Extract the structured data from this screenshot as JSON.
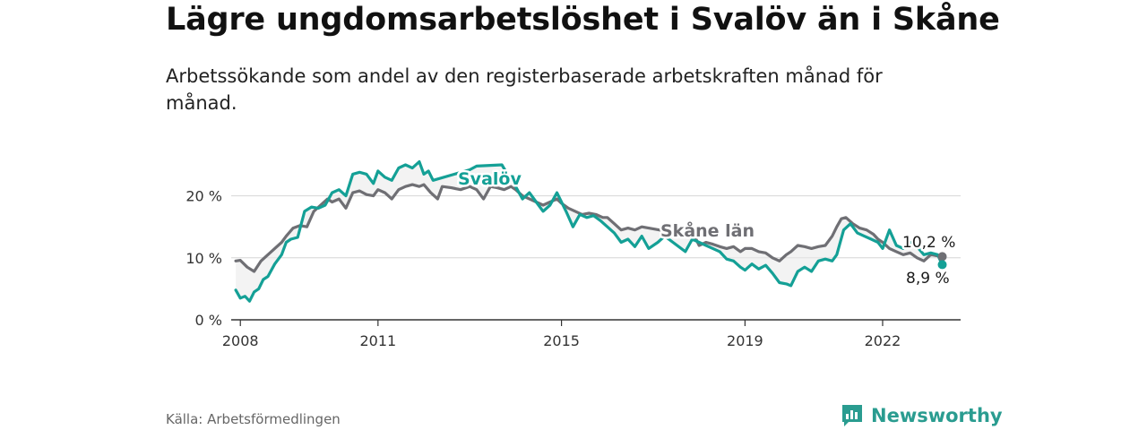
{
  "title": "Lägre ungdomsarbetslöshet i Svalöv än i Skåne",
  "subtitle": "Arbetssökande som andel av den registerbaserade arbetskraften månad för månad.",
  "source": "Källa: Arbetsförmedlingen",
  "brand": {
    "name": "Newsworthy",
    "icon": "newsworthy-logo-icon"
  },
  "colors": {
    "svalov": "#14a096",
    "skane": "#6f6f74",
    "grid": "#d6d6d6",
    "axis": "#333333"
  },
  "chart_data": {
    "type": "line",
    "title": "Lägre ungdomsarbetslöshet i Svalöv än i Skåne",
    "xlabel": "",
    "ylabel": "",
    "x_ticks": [
      {
        "year": 2008,
        "label": "2008"
      },
      {
        "year": 2011,
        "label": "2011"
      },
      {
        "year": 2015,
        "label": "2015"
      },
      {
        "year": 2019,
        "label": "2019"
      },
      {
        "year": 2022,
        "label": "2022"
      }
    ],
    "y_ticks": [
      {
        "value": 0,
        "label": "0 %"
      },
      {
        "value": 10,
        "label": "10 %"
      },
      {
        "value": 20,
        "label": "20 %"
      }
    ],
    "xlim": [
      2007.8,
      2023.7
    ],
    "ylim": [
      0,
      26
    ],
    "series": [
      {
        "name": "Svalöv",
        "label": "Svalöv",
        "end_label": "8,9 %",
        "color": "#14a096",
        "points": [
          [
            2007.9,
            4.8
          ],
          [
            2008.0,
            3.5
          ],
          [
            2008.1,
            3.8
          ],
          [
            2008.2,
            3.0
          ],
          [
            2008.3,
            4.5
          ],
          [
            2008.4,
            5.0
          ],
          [
            2008.5,
            6.5
          ],
          [
            2008.6,
            7.0
          ],
          [
            2008.75,
            9.0
          ],
          [
            2008.9,
            10.5
          ],
          [
            2009.0,
            12.5
          ],
          [
            2009.1,
            13.0
          ],
          [
            2009.25,
            13.3
          ],
          [
            2009.4,
            17.5
          ],
          [
            2009.55,
            18.2
          ],
          [
            2009.7,
            18.0
          ],
          [
            2009.85,
            18.5
          ],
          [
            2010.0,
            20.5
          ],
          [
            2010.15,
            21.0
          ],
          [
            2010.3,
            20.0
          ],
          [
            2010.45,
            23.5
          ],
          [
            2010.6,
            23.8
          ],
          [
            2010.75,
            23.5
          ],
          [
            2010.9,
            22.0
          ],
          [
            2011.0,
            24.0
          ],
          [
            2011.15,
            23.0
          ],
          [
            2011.3,
            22.5
          ],
          [
            2011.45,
            24.5
          ],
          [
            2011.6,
            25.0
          ],
          [
            2011.75,
            24.5
          ],
          [
            2011.9,
            25.5
          ],
          [
            2012.0,
            23.5
          ],
          [
            2012.1,
            24.0
          ],
          [
            2012.2,
            22.5
          ],
          [
            2013.0,
            24.2
          ],
          [
            2013.15,
            24.8
          ],
          [
            2013.7,
            25.0
          ],
          [
            2013.9,
            22.5
          ],
          [
            2014.0,
            21.5
          ],
          [
            2014.15,
            19.5
          ],
          [
            2014.3,
            20.5
          ],
          [
            2014.45,
            19.0
          ],
          [
            2014.6,
            17.5
          ],
          [
            2014.75,
            18.5
          ],
          [
            2014.9,
            20.5
          ],
          [
            2015.0,
            19.0
          ],
          [
            2015.1,
            17.5
          ],
          [
            2015.25,
            15.0
          ],
          [
            2015.4,
            17.0
          ],
          [
            2015.55,
            16.5
          ],
          [
            2015.7,
            16.8
          ],
          [
            2015.85,
            16.0
          ],
          [
            2016.0,
            15.0
          ],
          [
            2016.15,
            14.0
          ],
          [
            2016.3,
            12.5
          ],
          [
            2016.45,
            13.0
          ],
          [
            2016.6,
            11.8
          ],
          [
            2016.75,
            13.5
          ],
          [
            2016.9,
            11.5
          ],
          [
            2017.1,
            12.5
          ],
          [
            2017.25,
            13.5
          ],
          [
            2017.7,
            11.0
          ],
          [
            2017.85,
            13.0
          ],
          [
            2018.0,
            12.5
          ],
          [
            2018.15,
            12.0
          ],
          [
            2018.3,
            11.5
          ],
          [
            2018.45,
            11.0
          ],
          [
            2018.6,
            9.8
          ],
          [
            2018.75,
            9.5
          ],
          [
            2018.9,
            8.5
          ],
          [
            2019.0,
            8.0
          ],
          [
            2019.15,
            9.0
          ],
          [
            2019.3,
            8.2
          ],
          [
            2019.45,
            8.8
          ],
          [
            2019.6,
            7.5
          ],
          [
            2019.75,
            6.0
          ],
          [
            2019.9,
            5.8
          ],
          [
            2020.0,
            5.5
          ],
          [
            2020.15,
            7.8
          ],
          [
            2020.3,
            8.5
          ],
          [
            2020.45,
            7.8
          ],
          [
            2020.6,
            9.5
          ],
          [
            2020.75,
            9.8
          ],
          [
            2020.9,
            9.5
          ],
          [
            2021.0,
            10.5
          ],
          [
            2021.15,
            14.5
          ],
          [
            2021.3,
            15.5
          ],
          [
            2021.45,
            14.0
          ],
          [
            2021.6,
            13.5
          ],
          [
            2021.75,
            13.0
          ],
          [
            2021.9,
            12.5
          ],
          [
            2022.0,
            11.5
          ],
          [
            2022.15,
            14.5
          ],
          [
            2022.3,
            12.0
          ],
          [
            2022.45,
            11.5
          ],
          [
            2022.6,
            12.5
          ],
          [
            2022.75,
            11.8
          ],
          [
            2022.9,
            10.5
          ],
          [
            2023.05,
            10.8
          ],
          [
            2023.2,
            10.5
          ],
          [
            2023.3,
            8.9
          ]
        ]
      },
      {
        "name": "Skåne län",
        "label": "Skåne län",
        "end_label": "10,2 %",
        "color": "#6f6f74",
        "points": [
          [
            2007.9,
            9.5
          ],
          [
            2008.0,
            9.6
          ],
          [
            2008.15,
            8.5
          ],
          [
            2008.3,
            7.8
          ],
          [
            2008.45,
            9.5
          ],
          [
            2008.6,
            10.5
          ],
          [
            2008.75,
            11.5
          ],
          [
            2008.9,
            12.5
          ],
          [
            2009.0,
            13.5
          ],
          [
            2009.15,
            14.8
          ],
          [
            2009.3,
            15.2
          ],
          [
            2009.45,
            15.0
          ],
          [
            2009.6,
            17.5
          ],
          [
            2009.75,
            18.5
          ],
          [
            2009.9,
            19.5
          ],
          [
            2010.0,
            19.0
          ],
          [
            2010.15,
            19.5
          ],
          [
            2010.3,
            18.0
          ],
          [
            2010.45,
            20.5
          ],
          [
            2010.6,
            20.8
          ],
          [
            2010.75,
            20.2
          ],
          [
            2010.9,
            20.0
          ],
          [
            2011.0,
            21.0
          ],
          [
            2011.15,
            20.5
          ],
          [
            2011.3,
            19.5
          ],
          [
            2011.45,
            21.0
          ],
          [
            2011.6,
            21.5
          ],
          [
            2011.75,
            21.8
          ],
          [
            2011.9,
            21.5
          ],
          [
            2012.0,
            21.8
          ],
          [
            2012.15,
            20.5
          ],
          [
            2012.3,
            19.5
          ],
          [
            2012.4,
            21.5
          ],
          [
            2012.6,
            21.3
          ],
          [
            2012.8,
            21.0
          ],
          [
            2013.0,
            21.5
          ],
          [
            2013.15,
            21.0
          ],
          [
            2013.3,
            19.5
          ],
          [
            2013.45,
            21.5
          ],
          [
            2013.6,
            21.3
          ],
          [
            2013.75,
            21.0
          ],
          [
            2013.9,
            21.5
          ],
          [
            2014.0,
            21.0
          ],
          [
            2014.15,
            20.0
          ],
          [
            2014.3,
            19.5
          ],
          [
            2014.45,
            19.0
          ],
          [
            2014.6,
            18.5
          ],
          [
            2014.75,
            19.0
          ],
          [
            2014.9,
            19.5
          ],
          [
            2015.0,
            18.8
          ],
          [
            2015.15,
            18.0
          ],
          [
            2015.3,
            17.5
          ],
          [
            2015.45,
            17.0
          ],
          [
            2015.6,
            17.2
          ],
          [
            2015.75,
            17.0
          ],
          [
            2015.9,
            16.5
          ],
          [
            2016.0,
            16.5
          ],
          [
            2016.15,
            15.5
          ],
          [
            2016.3,
            14.5
          ],
          [
            2016.45,
            14.8
          ],
          [
            2016.6,
            14.5
          ],
          [
            2016.75,
            15.0
          ],
          [
            2016.9,
            14.8
          ],
          [
            2017.9,
            13.5
          ],
          [
            2018.0,
            12.0
          ],
          [
            2018.15,
            12.5
          ],
          [
            2018.3,
            12.2
          ],
          [
            2018.45,
            11.8
          ],
          [
            2018.6,
            11.5
          ],
          [
            2018.75,
            11.8
          ],
          [
            2018.9,
            11.0
          ],
          [
            2019.0,
            11.5
          ],
          [
            2019.15,
            11.5
          ],
          [
            2019.3,
            11.0
          ],
          [
            2019.45,
            10.8
          ],
          [
            2019.6,
            10.0
          ],
          [
            2019.75,
            9.5
          ],
          [
            2019.9,
            10.5
          ],
          [
            2020.0,
            11.0
          ],
          [
            2020.15,
            12.0
          ],
          [
            2020.3,
            11.8
          ],
          [
            2020.45,
            11.5
          ],
          [
            2020.6,
            11.8
          ],
          [
            2020.75,
            12.0
          ],
          [
            2020.9,
            13.5
          ],
          [
            2021.0,
            15.0
          ],
          [
            2021.1,
            16.3
          ],
          [
            2021.2,
            16.5
          ],
          [
            2021.35,
            15.5
          ],
          [
            2021.5,
            14.8
          ],
          [
            2021.65,
            14.5
          ],
          [
            2021.8,
            13.8
          ],
          [
            2021.9,
            13.0
          ],
          [
            2022.0,
            12.5
          ],
          [
            2022.15,
            11.5
          ],
          [
            2022.3,
            11.0
          ],
          [
            2022.45,
            10.5
          ],
          [
            2022.6,
            10.8
          ],
          [
            2022.75,
            10.0
          ],
          [
            2022.9,
            9.5
          ],
          [
            2023.05,
            10.5
          ],
          [
            2023.2,
            10.3
          ],
          [
            2023.3,
            10.2
          ]
        ]
      }
    ]
  }
}
